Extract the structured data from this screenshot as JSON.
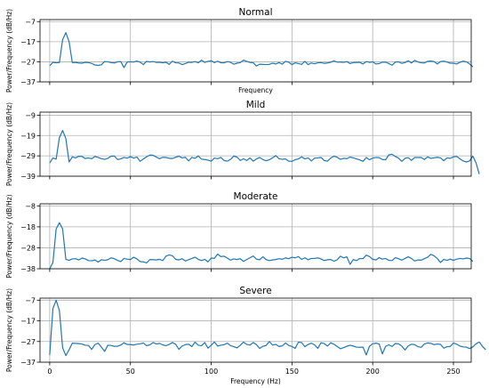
{
  "chart_data": [
    {
      "type": "line",
      "title": "Normal",
      "xlabel": "Frequency",
      "ylabel": "Power/Frequency (dB/Hz)",
      "xlim": [
        -6,
        261
      ],
      "ylim": [
        -37,
        -6
      ],
      "yticks": [
        -37,
        -27,
        -17,
        -7
      ],
      "xticks": [
        0,
        50,
        100,
        150,
        200,
        250
      ],
      "show_xtick_labels": false,
      "grid": true,
      "color": "#1f77b4",
      "series": [
        {
          "x_start": 0,
          "x_step": 2,
          "values": [
            -29,
            -27.3,
            -27.5,
            -27.4,
            -16,
            -12.5,
            -17,
            -27.4,
            -27.3,
            -27.6,
            -27.7,
            -27.3,
            -27.4,
            -27.8,
            -28.6,
            -28.8,
            -28.5,
            -26.9,
            -27,
            -27.4,
            -27.6,
            -27,
            -26.9,
            -29.9,
            -27.1,
            -27,
            -27.1,
            -26.6,
            -27.2,
            -28.4,
            -26.8,
            -27.1,
            -26.9,
            -27.3,
            -27.2,
            -27.5,
            -27.2,
            -28.3,
            -26.7,
            -27.5,
            -27.6,
            -28.4,
            -27.9,
            -27.2,
            -27.3,
            -26.9,
            -27.5,
            -26.2,
            -27.3,
            -26.8,
            -26.5,
            -27.4,
            -26.7,
            -27.5,
            -27.5,
            -26.9,
            -27.3,
            -28.2,
            -27.7,
            -27.4,
            -26.2,
            -26.8,
            -27.3,
            -27.5,
            -29.1,
            -28.2,
            -28.3,
            -28.4,
            -28.3,
            -27.7,
            -28.1,
            -27.4,
            -28.2,
            -26.8,
            -27.2,
            -28.4,
            -27.5,
            -27.9,
            -28.3,
            -26.8,
            -28.4,
            -27.6,
            -28,
            -27.5,
            -27.4,
            -27.8,
            -27.6,
            -27.2,
            -26.5,
            -27.2,
            -27.1,
            -27.3,
            -26.9,
            -27.9,
            -27.4,
            -27.3,
            -27.3,
            -28.1,
            -26.9,
            -27.3,
            -27,
            -28.1,
            -27.9,
            -27.2,
            -27.2,
            -27.9,
            -28.7,
            -27.2,
            -27,
            -27.8,
            -27.4,
            -26.5,
            -27.6,
            -26.3,
            -27.1,
            -27.5,
            -27.6,
            -26.8,
            -26.6,
            -26.9,
            -28.1,
            -26.9,
            -26.7,
            -27.1,
            -27.7,
            -27.7,
            -28.1,
            -27.3,
            -26.7,
            -27,
            -28.1,
            -29.5
          ]
        }
      ]
    },
    {
      "type": "line",
      "title": "Mild",
      "xlabel": "",
      "ylabel": "Power/Frequency (dB/Hz)",
      "xlim": [
        -6,
        261
      ],
      "ylim": [
        -39,
        -7.5
      ],
      "yticks": [
        -39,
        -29,
        -19,
        -9
      ],
      "xticks": [
        0,
        50,
        100,
        150,
        200,
        250
      ],
      "show_xtick_labels": false,
      "grid": true,
      "color": "#1f77b4",
      "series": [
        {
          "x_start": 0,
          "x_step": 2,
          "values": [
            -32.5,
            -30,
            -30.6,
            -20,
            -16.5,
            -20.5,
            -32,
            -29.5,
            -30,
            -29.2,
            -29.3,
            -30.3,
            -30,
            -30.4,
            -29.3,
            -29.8,
            -30.4,
            -30.7,
            -30.2,
            -29.2,
            -29.1,
            -30.8,
            -30.5,
            -29.8,
            -30.1,
            -29.4,
            -30.1,
            -29.6,
            -31.7,
            -30.5,
            -29.5,
            -28.6,
            -28.7,
            -29.6,
            -30.4,
            -29.7,
            -29.8,
            -30.2,
            -30.3,
            -29.7,
            -29.2,
            -30,
            -29.7,
            -31.5,
            -29.8,
            -30.2,
            -29.1,
            -30.6,
            -30.8,
            -31.1,
            -31.6,
            -30.1,
            -30.4,
            -29.8,
            -31.3,
            -31.6,
            -30.7,
            -29.1,
            -29.6,
            -31.3,
            -30.4,
            -31.3,
            -30,
            -31.6,
            -30.5,
            -29.8,
            -30.8,
            -31.4,
            -30.9,
            -30,
            -28.9,
            -30.4,
            -30.7,
            -30.5,
            -31.6,
            -31.7,
            -30.9,
            -30.5,
            -29.5,
            -30.5,
            -30,
            -31.5,
            -30.1,
            -30,
            -29.8,
            -31.3,
            -31.6,
            -30.1,
            -29.2,
            -29.7,
            -30.7,
            -30.2,
            -30.4,
            -29.6,
            -30,
            -30.5,
            -31,
            -31.7,
            -29.8,
            -30.9,
            -30.1,
            -29.8,
            -29.9,
            -30.8,
            -30.9,
            -28.5,
            -28.2,
            -29.3,
            -30.1,
            -31.7,
            -30.2,
            -29.9,
            -31.2,
            -29.8,
            -29.8,
            -29.8,
            -30.8,
            -29.5,
            -30.2,
            -30,
            -29.7,
            -30,
            -31.4,
            -30,
            -30.2,
            -29.5,
            -29.3,
            -30.4,
            -31.5,
            -32,
            -31.5,
            -29.1,
            -32.5,
            -38
          ]
        }
      ]
    },
    {
      "type": "line",
      "title": "Moderate",
      "xlabel": "",
      "ylabel": "Power/Frequency (dB/Hz)",
      "xlim": [
        -6,
        261
      ],
      "ylim": [
        -38,
        -7
      ],
      "yticks": [
        -38,
        -28,
        -18,
        -8
      ],
      "xticks": [
        0,
        50,
        100,
        150,
        200,
        250
      ],
      "show_xtick_labels": false,
      "grid": true,
      "color": "#1f77b4",
      "series": [
        {
          "x_start": 0,
          "x_step": 2,
          "values": [
            -38,
            -35,
            -19,
            -16,
            -19,
            -33.5,
            -34,
            -33.3,
            -33.2,
            -33.8,
            -32.9,
            -33.3,
            -34.1,
            -34.2,
            -33.8,
            -34.8,
            -33.7,
            -34,
            -33.7,
            -32.8,
            -33.2,
            -34,
            -34.6,
            -33.1,
            -33.4,
            -33.6,
            -32.5,
            -33.3,
            -34.6,
            -34.7,
            -35.2,
            -33.6,
            -33.7,
            -33.8,
            -33.5,
            -34.1,
            -32,
            -31.4,
            -31.8,
            -33.5,
            -33.8,
            -33.2,
            -34.3,
            -33.7,
            -33.1,
            -32.5,
            -33.5,
            -34.1,
            -33.5,
            -34.7,
            -32.9,
            -33,
            -31,
            -32.2,
            -32,
            -32.9,
            -33.9,
            -33.3,
            -33.6,
            -33.2,
            -34.5,
            -33.6,
            -32.8,
            -31.9,
            -33.4,
            -33.7,
            -32.3,
            -33.6,
            -34.1,
            -33.8,
            -33.6,
            -33.2,
            -33.5,
            -32.8,
            -33.2,
            -32.5,
            -32.8,
            -32.2,
            -33.5,
            -32.8,
            -33.7,
            -33.1,
            -33.1,
            -32.8,
            -33.3,
            -34.1,
            -33.7,
            -33.6,
            -34.4,
            -33.7,
            -32,
            -32.8,
            -32.3,
            -35.9,
            -33.6,
            -34.1,
            -33.1,
            -33.2,
            -31.5,
            -32.2,
            -33.5,
            -33.8,
            -32.7,
            -33.4,
            -33.1,
            -34,
            -34.1,
            -32.7,
            -33.2,
            -33.9,
            -33.1,
            -32.3,
            -33.1,
            -34.3,
            -33.8,
            -33.9,
            -33.2,
            -32.5,
            -31.1,
            -31.8,
            -33.1,
            -35,
            -33.5,
            -34,
            -33.4,
            -34,
            -33.4,
            -33.1,
            -33.3,
            -32.9,
            -33.1,
            -34.5
          ]
        }
      ]
    },
    {
      "type": "line",
      "title": "Severe",
      "xlabel": "Frequency (Hz)",
      "ylabel": "Power/Frequency (dB/Hz)",
      "xlim": [
        -6,
        261
      ],
      "ylim": [
        -37,
        -6
      ],
      "yticks": [
        -37,
        -27,
        -17,
        -7
      ],
      "xticks": [
        0,
        50,
        100,
        150,
        200,
        250
      ],
      "show_xtick_labels": true,
      "grid": true,
      "color": "#1f77b4",
      "series": [
        {
          "x_start": 0,
          "x_step": 2,
          "values": [
            -33.5,
            -11,
            -7,
            -12,
            -30,
            -33.8,
            -31,
            -27.8,
            -27.9,
            -28,
            -28.2,
            -28.8,
            -28.9,
            -30.8,
            -28.5,
            -27.8,
            -29.7,
            -31.8,
            -28.8,
            -28.9,
            -29.3,
            -29.3,
            -28.7,
            -27.6,
            -28.4,
            -28.5,
            -28.7,
            -28.3,
            -28.1,
            -27.7,
            -29,
            -28.6,
            -27.5,
            -28.2,
            -27.9,
            -28.6,
            -29,
            -28.4,
            -27.5,
            -28.3,
            -30.8,
            -29.2,
            -28.5,
            -28.3,
            -29.4,
            -27.3,
            -28.8,
            -29,
            -27.5,
            -30.2,
            -28.8,
            -27.2,
            -29.2,
            -28.8,
            -28.5,
            -27.8,
            -29,
            -29.5,
            -30.1,
            -28.8,
            -27.3,
            -28.4,
            -28.7,
            -27.5,
            -28.5,
            -30.3,
            -29.3,
            -28.9,
            -27,
            -28.7,
            -28.4,
            -29.4,
            -29.1,
            -27.7,
            -28.9,
            -29.4,
            -30.3,
            -27.3,
            -27.5,
            -29.5,
            -28.4,
            -27.8,
            -28.6,
            -30.3,
            -27.6,
            -28,
            -29.2,
            -27.6,
            -28.3,
            -29.4,
            -30.5,
            -29.9,
            -29.3,
            -28.8,
            -29.2,
            -29.7,
            -29.8,
            -29.7,
            -33.5,
            -29.3,
            -28.1,
            -27.8,
            -28.2,
            -33,
            -29.3,
            -28.6,
            -29.4,
            -28,
            -28.1,
            -29.2,
            -31.1,
            -29.1,
            -28.3,
            -28.5,
            -29.5,
            -29.8,
            -28.2,
            -27.7,
            -27.9,
            -28.5,
            -28.2,
            -28.4,
            -30.2,
            -29.5,
            -29.4,
            -27.7,
            -28.3,
            -29.2,
            -29.6,
            -29.7,
            -30.4,
            -29.6,
            -28.1,
            -27.2,
            -29.4,
            -31
          ]
        }
      ]
    }
  ]
}
